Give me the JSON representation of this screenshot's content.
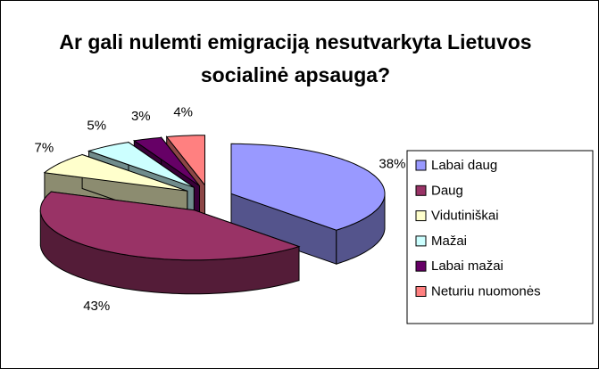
{
  "chart_data": {
    "type": "pie3d",
    "title": "Ar gali nulemti emigraciją nesutvarkyta Lietuvos socialinė apsauga?",
    "categories": [
      "Labai daug",
      "Daug",
      "Vidutiniškai",
      "Mažai",
      "Labai mažai",
      "Neturiu nuomonės"
    ],
    "values": [
      38,
      43,
      7,
      5,
      3,
      4
    ],
    "value_labels": [
      "38%",
      "43%",
      "7%",
      "5%",
      "3%",
      "4%"
    ],
    "colors": [
      "#9999ff",
      "#993366",
      "#ffffcc",
      "#ccffff",
      "#660066",
      "#ff8080"
    ],
    "legend": "right"
  }
}
